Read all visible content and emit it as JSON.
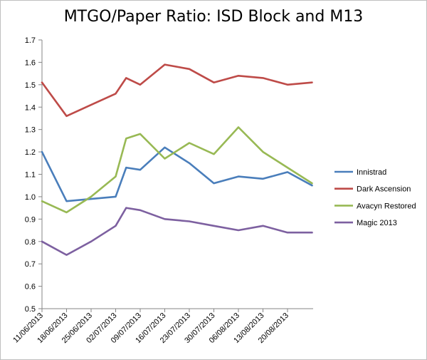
{
  "chart_data": {
    "type": "line",
    "title": "MTGO/Paper Ratio: ISD Block and M13",
    "xlabel": "",
    "ylabel": "",
    "ylim": [
      0.5,
      1.7
    ],
    "yticks": [
      "0.5",
      "0.6",
      "0.7",
      "0.8",
      "0.9",
      "1.0",
      "1.1",
      "1.2",
      "1.3",
      "1.4",
      "1.5",
      "1.6",
      "1.7"
    ],
    "xticks": [
      {
        "label": "11/06/2013",
        "day": 0
      },
      {
        "label": "18/06/2013",
        "day": 7
      },
      {
        "label": "25/06/2013",
        "day": 14
      },
      {
        "label": "02/07/2013",
        "day": 21
      },
      {
        "label": "09/07/2013",
        "day": 28
      },
      {
        "label": "16/07/2013",
        "day": 35
      },
      {
        "label": "23/07/2013",
        "day": 42
      },
      {
        "label": "30/07/2013",
        "day": 49
      },
      {
        "label": "06/08/2013",
        "day": 56
      },
      {
        "label": "13/08/2013",
        "day": 63
      },
      {
        "label": "20/08/2013",
        "day": 70
      }
    ],
    "x": [
      "11/06/2013",
      "18/06/2013",
      "25/06/2013",
      "02/07/2013",
      "05/07/2013",
      "09/07/2013",
      "16/07/2013",
      "23/07/2013",
      "30/07/2013",
      "06/08/2013",
      "13/08/2013",
      "20/08/2013",
      "27/08/2013"
    ],
    "series": [
      {
        "name": "Innistrad",
        "color": "#4a7ebb",
        "values": [
          1.2,
          0.98,
          0.99,
          1.0,
          1.13,
          1.12,
          1.22,
          1.15,
          1.06,
          1.09,
          1.08,
          1.11,
          1.05
        ]
      },
      {
        "name": "Dark Ascension",
        "color": "#be4b48",
        "values": [
          1.51,
          1.36,
          1.41,
          1.46,
          1.53,
          1.5,
          1.59,
          1.57,
          1.51,
          1.54,
          1.53,
          1.5,
          1.51
        ]
      },
      {
        "name": "Avacyn Restored",
        "color": "#98b954",
        "values": [
          0.98,
          0.93,
          1.0,
          1.09,
          1.26,
          1.28,
          1.17,
          1.24,
          1.19,
          1.31,
          1.2,
          1.13,
          1.06
        ]
      },
      {
        "name": "Magic 2013",
        "color": "#7d60a0",
        "values": [
          0.8,
          0.74,
          0.8,
          0.87,
          0.95,
          0.94,
          0.9,
          0.89,
          0.87,
          0.85,
          0.87,
          0.84,
          0.84
        ]
      }
    ],
    "grid": false,
    "legend": "right"
  }
}
